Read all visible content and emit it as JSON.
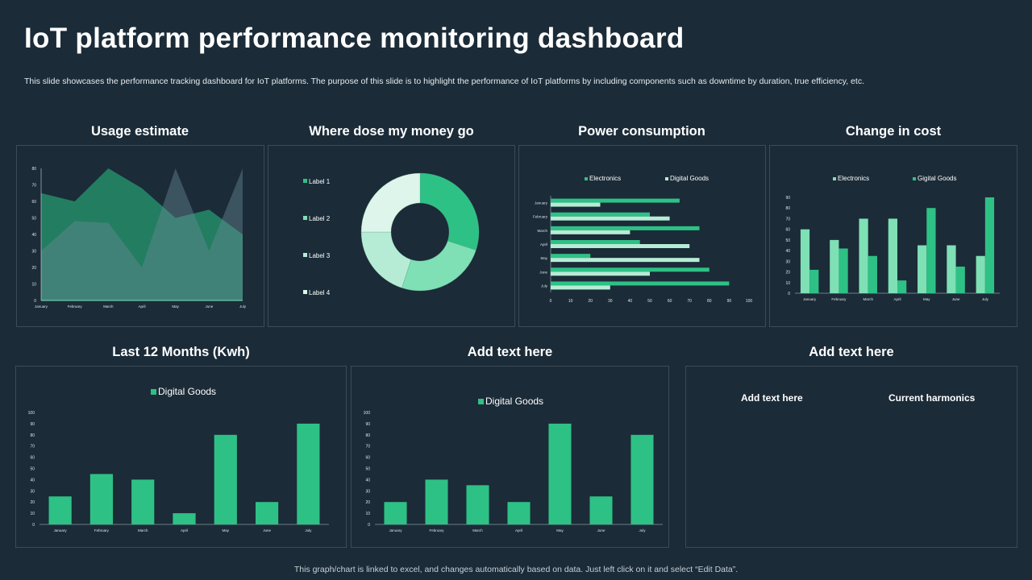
{
  "title": "IoT platform performance monitoring dashboard",
  "subtitle": "This slide showcases the performance tracking dashboard for IoT platforms. The purpose of this slide is to highlight the performance of IoT platforms by including components such as downtime by duration, true efficiency, etc.",
  "footer": "This graph/chart is linked to excel, and changes automatically based on data. Just left click on it and select “Edit Data”.",
  "colors": {
    "background": "#1b2b38",
    "green": "#2ec185",
    "mid_green": "#7fdfb5",
    "light_green": "#b6ecd5",
    "pale": "#ddf5ea"
  },
  "panels": {
    "usage": "Usage estimate",
    "money": "Where dose my money go",
    "power": "Power consumption",
    "cost": "Change in cost",
    "last12": "Last 12 Months (Kwh)",
    "addtext": "Add text here",
    "addtext2": "Add text here",
    "text_left": "Add text here",
    "text_right": "Current harmonics"
  },
  "chart_data": [
    {
      "type": "area",
      "title": "Usage estimate",
      "categories": [
        "January",
        "February",
        "March",
        "April",
        "May",
        "June",
        "July"
      ],
      "series": [
        {
          "values": [
            65,
            60,
            80,
            68,
            50,
            55,
            40
          ]
        },
        {
          "values": [
            30,
            48,
            47,
            20,
            80,
            30,
            80
          ]
        }
      ],
      "ylim": [
        0,
        80
      ],
      "yticks": [
        "0",
        "10",
        "20",
        "30",
        "40",
        "50",
        "60",
        "70",
        "80"
      ]
    },
    {
      "type": "pie",
      "title": "Where dose my money go",
      "donut": true,
      "legend": "left",
      "labels": [
        "Label 1",
        "Label 2",
        "Label 3",
        "Label 4"
      ],
      "values": [
        30,
        25,
        20,
        25
      ],
      "colors": [
        "#2ec185",
        "#7fdfb5",
        "#b6ecd5",
        "#ddf5ea"
      ]
    },
    {
      "type": "bar",
      "orientation": "horizontal",
      "title": "Power consumption",
      "legend": "top",
      "categories": [
        "January",
        "February",
        "March",
        "April",
        "May",
        "June",
        "July"
      ],
      "series": [
        {
          "name": "Electronics",
          "values": [
            65,
            50,
            75,
            45,
            20,
            80,
            90
          ],
          "color": "#2ec185"
        },
        {
          "name": "Digital Goods",
          "values": [
            25,
            60,
            40,
            70,
            75,
            50,
            30
          ],
          "color": "#b6ecd5"
        }
      ],
      "xlim": [
        0,
        100
      ],
      "xticks": [
        "0",
        "10",
        "20",
        "30",
        "40",
        "50",
        "60",
        "70",
        "80",
        "90",
        "100"
      ]
    },
    {
      "type": "bar",
      "title": "Change in cost",
      "legend": "top",
      "categories": [
        "January",
        "February",
        "March",
        "April",
        "May",
        "June",
        "July"
      ],
      "series": [
        {
          "name": "Electronics",
          "values": [
            60,
            50,
            70,
            70,
            45,
            45,
            35
          ],
          "color": "#7fdfb5"
        },
        {
          "name": "Gigital Goods",
          "values": [
            22,
            42,
            35,
            12,
            80,
            25,
            90
          ],
          "color": "#2ec185"
        }
      ],
      "ylim": [
        0,
        90
      ],
      "yticks": [
        "0",
        "10",
        "20",
        "30",
        "40",
        "50",
        "60",
        "70",
        "80",
        "90"
      ]
    },
    {
      "type": "bar",
      "title": "Last 12 Months (Kwh)",
      "legend": "top",
      "categories": [
        "January",
        "February",
        "March",
        "April",
        "May",
        "June",
        "July"
      ],
      "series": [
        {
          "name": "Digital Goods",
          "values": [
            25,
            45,
            40,
            10,
            80,
            20,
            90
          ],
          "color": "#2ec185"
        }
      ],
      "ylim": [
        0,
        100
      ],
      "yticks": [
        "0",
        "10",
        "20",
        "30",
        "40",
        "50",
        "60",
        "70",
        "80",
        "90",
        "100"
      ]
    },
    {
      "type": "bar",
      "title": "Add text here",
      "legend": "top",
      "categories": [
        "January",
        "February",
        "March",
        "April",
        "May",
        "June",
        "July"
      ],
      "series": [
        {
          "name": "Digital Goods",
          "values": [
            20,
            40,
            35,
            20,
            90,
            25,
            80
          ],
          "color": "#2ec185"
        }
      ],
      "ylim": [
        0,
        100
      ],
      "yticks": [
        "0",
        "10",
        "20",
        "30",
        "40",
        "50",
        "60",
        "70",
        "80",
        "90",
        "100"
      ]
    }
  ]
}
